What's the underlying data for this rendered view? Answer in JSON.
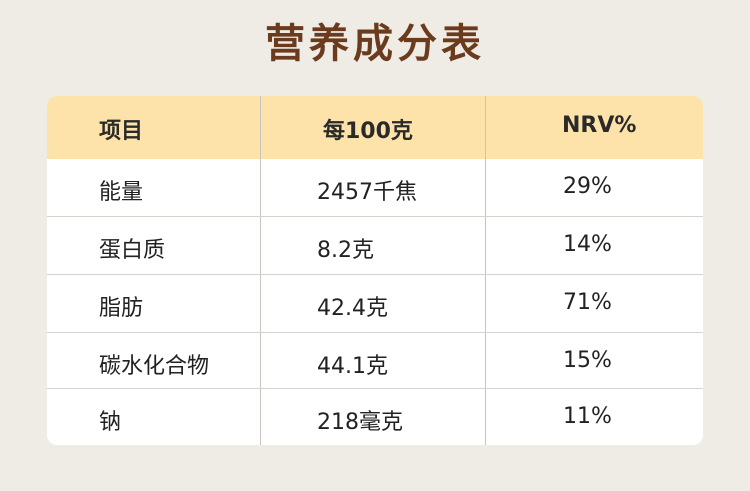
{
  "title": "营养成分表",
  "headers": [
    "项目",
    "每100克",
    "NRV%"
  ],
  "rows": [
    [
      "能量",
      "2457千焦",
      "29%"
    ],
    [
      "蛋白质",
      "8.2克",
      "14%"
    ],
    [
      "脂肪",
      "42.4克",
      "71%"
    ],
    [
      "碳水化合物",
      "44.1克",
      "15%"
    ],
    [
      "钠",
      "218毫克",
      "11%"
    ]
  ],
  "colors": {
    "title": "#6b3b1e",
    "header_bg": "#fde3aa",
    "page_bg": "#efebe5",
    "table_bg": "#ffffff"
  }
}
